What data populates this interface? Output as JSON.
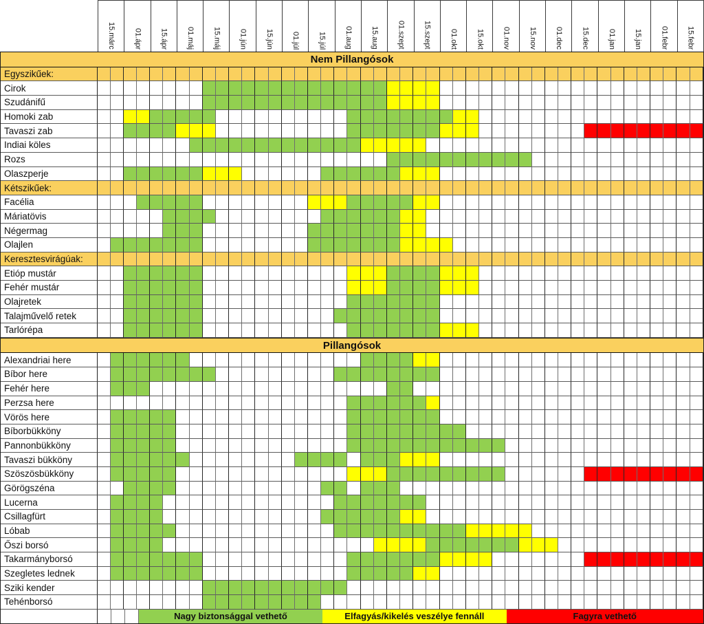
{
  "chart_data": {
    "type": "heatmap",
    "title": "",
    "columns": [
      "15.márc",
      "01.ápr",
      "15.ápr",
      "01.máj",
      "15.máj",
      "01.jún",
      "15.jún",
      "01.júl",
      "15.júl",
      "01.aug",
      "15.aug",
      "01.szept",
      "15.szept",
      "01.okt",
      "15.okt",
      "01.nov",
      "15.nov",
      "01.dec",
      "15.dec",
      "01.jan",
      "15.jan",
      "01.febr",
      "15.febr"
    ],
    "subcolumns_per_label": 2,
    "total_subcolumns": 46,
    "colors": {
      "g": "#92D050",
      "y": "#FFFF00",
      "r": "#FF0000",
      "orange": "#FAD05E",
      "white": "#FFFFFF"
    },
    "rows": [
      {
        "type": "band",
        "label": "Nem Pillangósok",
        "segments": []
      },
      {
        "type": "section",
        "label": "Egyszikűek:",
        "segments": []
      },
      {
        "type": "crop",
        "label": "Cirok",
        "segments": [
          [
            8,
            21,
            "g"
          ],
          [
            22,
            25,
            "y"
          ]
        ]
      },
      {
        "type": "crop",
        "label": "Szudánifű",
        "segments": [
          [
            8,
            21,
            "g"
          ],
          [
            22,
            25,
            "y"
          ]
        ]
      },
      {
        "type": "crop",
        "label": "Homoki zab",
        "segments": [
          [
            2,
            3,
            "y"
          ],
          [
            4,
            8,
            "g"
          ],
          [
            19,
            26,
            "g"
          ],
          [
            27,
            28,
            "y"
          ]
        ]
      },
      {
        "type": "crop",
        "label": "Tavaszi zab",
        "segments": [
          [
            2,
            5,
            "g"
          ],
          [
            6,
            8,
            "y"
          ],
          [
            19,
            25,
            "g"
          ],
          [
            26,
            28,
            "y"
          ],
          [
            37,
            45,
            "r"
          ]
        ]
      },
      {
        "type": "crop",
        "label": "Indiai köles",
        "segments": [
          [
            7,
            19,
            "g"
          ],
          [
            20,
            24,
            "y"
          ]
        ]
      },
      {
        "type": "crop",
        "label": "Rozs",
        "segments": [
          [
            22,
            32,
            "g"
          ]
        ]
      },
      {
        "type": "crop",
        "label": "Olaszperje",
        "segments": [
          [
            2,
            7,
            "g"
          ],
          [
            8,
            10,
            "y"
          ],
          [
            17,
            22,
            "g"
          ],
          [
            23,
            25,
            "y"
          ]
        ]
      },
      {
        "type": "section",
        "label": "Kétszikűek:",
        "segments": []
      },
      {
        "type": "crop",
        "label": "Facélia",
        "segments": [
          [
            3,
            7,
            "g"
          ],
          [
            16,
            18,
            "y"
          ],
          [
            19,
            23,
            "g"
          ],
          [
            24,
            25,
            "y"
          ]
        ]
      },
      {
        "type": "crop",
        "label": "Máriatövis",
        "segments": [
          [
            5,
            8,
            "g"
          ],
          [
            17,
            22,
            "g"
          ],
          [
            23,
            24,
            "y"
          ]
        ]
      },
      {
        "type": "crop",
        "label": "Négermag",
        "segments": [
          [
            5,
            7,
            "g"
          ],
          [
            16,
            22,
            "g"
          ],
          [
            23,
            24,
            "y"
          ]
        ]
      },
      {
        "type": "crop",
        "label": "Olajlen",
        "segments": [
          [
            1,
            7,
            "g"
          ],
          [
            16,
            22,
            "g"
          ],
          [
            23,
            26,
            "y"
          ]
        ]
      },
      {
        "type": "section",
        "label": "Keresztesvirágúak:",
        "segments": []
      },
      {
        "type": "crop",
        "label": "Etióp mustár",
        "segments": [
          [
            2,
            7,
            "g"
          ],
          [
            19,
            21,
            "y"
          ],
          [
            22,
            25,
            "g"
          ],
          [
            26,
            28,
            "y"
          ]
        ]
      },
      {
        "type": "crop",
        "label": "Fehér mustár",
        "segments": [
          [
            2,
            7,
            "g"
          ],
          [
            19,
            21,
            "y"
          ],
          [
            22,
            25,
            "g"
          ],
          [
            26,
            28,
            "y"
          ]
        ]
      },
      {
        "type": "crop",
        "label": "Olajretek",
        "segments": [
          [
            2,
            7,
            "g"
          ],
          [
            19,
            25,
            "g"
          ]
        ]
      },
      {
        "type": "crop",
        "label": "Talajművelő retek",
        "segments": [
          [
            2,
            7,
            "g"
          ],
          [
            18,
            25,
            "g"
          ]
        ]
      },
      {
        "type": "crop",
        "label": "Tarlórépa",
        "segments": [
          [
            2,
            7,
            "g"
          ],
          [
            19,
            25,
            "g"
          ],
          [
            26,
            28,
            "y"
          ]
        ]
      },
      {
        "type": "band",
        "label": "Pillangósok",
        "segments": []
      },
      {
        "type": "crop",
        "label": "Alexandriai here",
        "segments": [
          [
            1,
            6,
            "g"
          ],
          [
            20,
            23,
            "g"
          ],
          [
            24,
            25,
            "y"
          ]
        ]
      },
      {
        "type": "crop",
        "label": "Bíbor here",
        "segments": [
          [
            1,
            8,
            "g"
          ],
          [
            18,
            25,
            "g"
          ]
        ]
      },
      {
        "type": "crop",
        "label": "Fehér here",
        "segments": [
          [
            1,
            3,
            "g"
          ],
          [
            22,
            23,
            "g"
          ]
        ]
      },
      {
        "type": "crop",
        "label": "Perzsa here",
        "segments": [
          [
            19,
            24,
            "g"
          ],
          [
            25,
            25,
            "y"
          ]
        ]
      },
      {
        "type": "crop",
        "label": "Vörös here",
        "segments": [
          [
            1,
            5,
            "g"
          ],
          [
            19,
            25,
            "g"
          ]
        ]
      },
      {
        "type": "crop",
        "label": "Bíborbükköny",
        "segments": [
          [
            1,
            5,
            "g"
          ],
          [
            19,
            27,
            "g"
          ]
        ]
      },
      {
        "type": "crop",
        "label": "Pannonbükköny",
        "segments": [
          [
            1,
            5,
            "g"
          ],
          [
            19,
            30,
            "g"
          ]
        ]
      },
      {
        "type": "crop",
        "label": "Tavaszi bükköny",
        "segments": [
          [
            1,
            6,
            "g"
          ],
          [
            15,
            18,
            "g"
          ],
          [
            20,
            22,
            "g"
          ],
          [
            23,
            25,
            "y"
          ]
        ]
      },
      {
        "type": "crop",
        "label": "Szöszösbükköny",
        "segments": [
          [
            1,
            5,
            "g"
          ],
          [
            19,
            21,
            "y"
          ],
          [
            22,
            30,
            "g"
          ],
          [
            37,
            45,
            "r"
          ]
        ]
      },
      {
        "type": "crop",
        "label": "Görögszéna",
        "segments": [
          [
            2,
            5,
            "g"
          ],
          [
            17,
            18,
            "g"
          ],
          [
            20,
            22,
            "g"
          ]
        ]
      },
      {
        "type": "crop",
        "label": "Lucerna",
        "segments": [
          [
            1,
            4,
            "g"
          ],
          [
            18,
            24,
            "g"
          ]
        ]
      },
      {
        "type": "crop",
        "label": "Csillagfürt",
        "segments": [
          [
            1,
            4,
            "g"
          ],
          [
            17,
            22,
            "g"
          ],
          [
            23,
            24,
            "y"
          ]
        ]
      },
      {
        "type": "crop",
        "label": "Lóbab",
        "segments": [
          [
            1,
            5,
            "g"
          ],
          [
            18,
            27,
            "g"
          ],
          [
            28,
            32,
            "y"
          ]
        ]
      },
      {
        "type": "crop",
        "label": "Őszi borsó",
        "segments": [
          [
            1,
            4,
            "g"
          ],
          [
            21,
            24,
            "y"
          ],
          [
            25,
            31,
            "g"
          ],
          [
            32,
            34,
            "y"
          ]
        ]
      },
      {
        "type": "crop",
        "label": "Takarmányborsó",
        "segments": [
          [
            1,
            7,
            "g"
          ],
          [
            19,
            25,
            "g"
          ],
          [
            26,
            29,
            "y"
          ],
          [
            37,
            45,
            "r"
          ]
        ]
      },
      {
        "type": "crop",
        "label": "Szegletes lednek",
        "segments": [
          [
            1,
            7,
            "g"
          ],
          [
            19,
            23,
            "g"
          ],
          [
            24,
            25,
            "y"
          ]
        ]
      },
      {
        "type": "crop",
        "label": "Sziki kender",
        "segments": [
          [
            8,
            18,
            "g"
          ]
        ]
      },
      {
        "type": "crop",
        "label": "Tehénborsó",
        "segments": [
          [
            8,
            16,
            "g"
          ]
        ]
      }
    ],
    "legend": [
      {
        "label": "Nagy biztonsággal vethető",
        "color": "g",
        "start": 3,
        "end": 16
      },
      {
        "label": "Elfagyás/kikelés veszélye fennáll",
        "color": "y",
        "start": 17,
        "end": 30
      },
      {
        "label": "Fagyra vethető",
        "color": "r",
        "start": 31,
        "end": 45
      }
    ]
  }
}
